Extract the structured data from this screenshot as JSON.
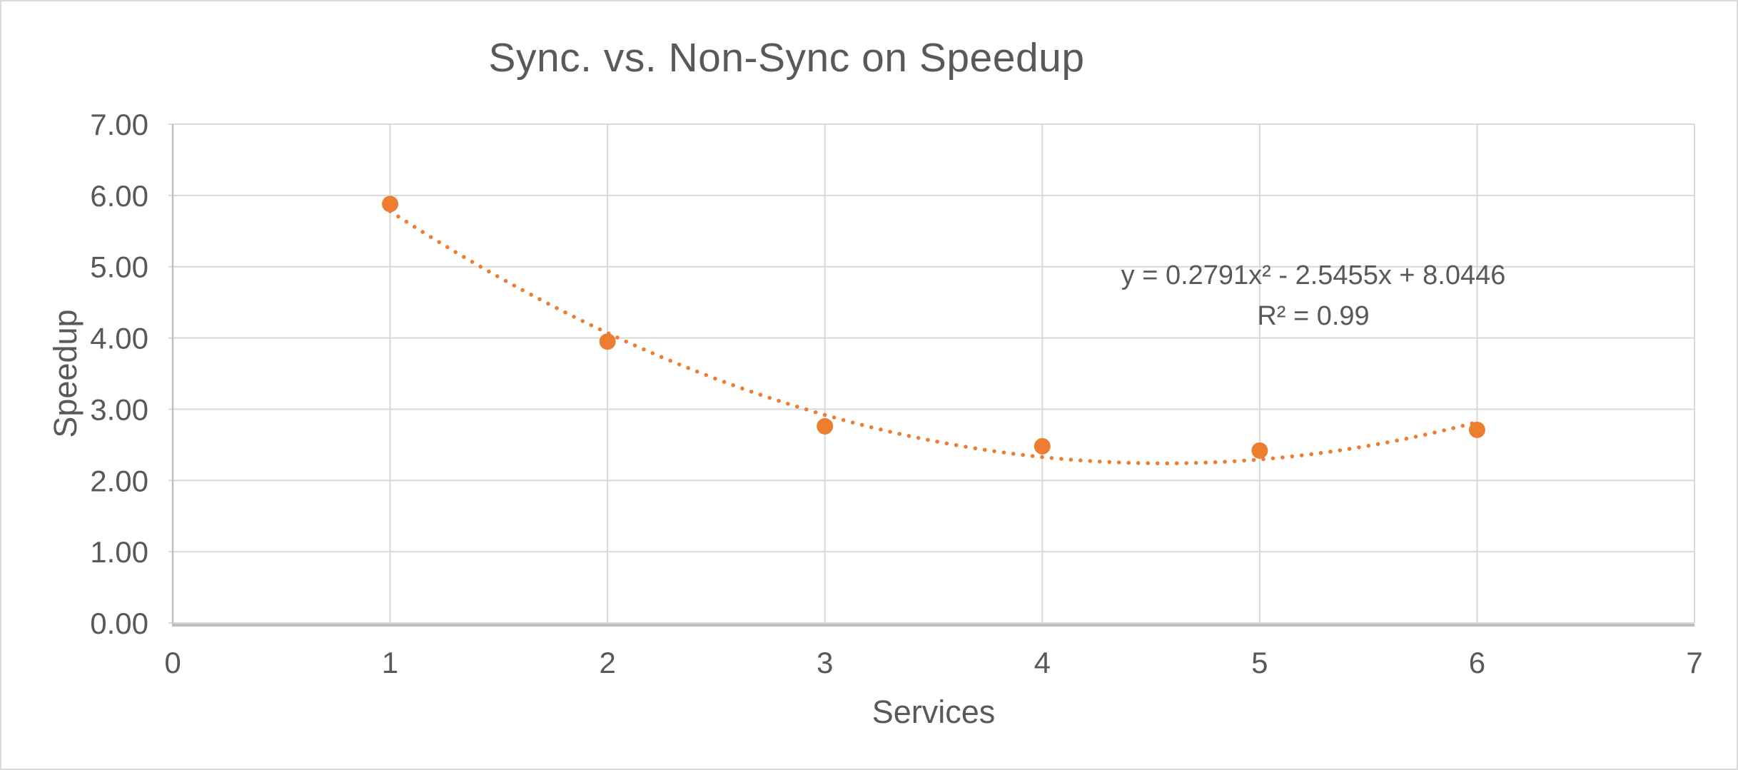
{
  "chart": {
    "title": "Sync. vs. Non-Sync on Speedup",
    "x_axis_title": "Services",
    "y_axis_title": "Speedup",
    "equation_line1": "y = 0.2791x² - 2.5455x + 8.0446",
    "equation_line2": "R² = 0.99"
  },
  "chart_data": {
    "type": "scatter",
    "title": "Sync. vs. Non-Sync on Speedup",
    "xlabel": "Services",
    "ylabel": "Speedup",
    "x": [
      1,
      2,
      3,
      4,
      5,
      6
    ],
    "y": [
      5.88,
      3.95,
      2.76,
      2.48,
      2.42,
      2.71
    ],
    "xlim": [
      0,
      7
    ],
    "ylim": [
      0,
      7
    ],
    "x_ticks": [
      "0",
      "1",
      "2",
      "3",
      "4",
      "5",
      "6",
      "7"
    ],
    "y_ticks": [
      "0.00",
      "1.00",
      "2.00",
      "3.00",
      "4.00",
      "5.00",
      "6.00",
      "7.00"
    ],
    "grid": true,
    "legend": false,
    "trendline": {
      "kind": "polynomial",
      "order": 2,
      "a": 0.2791,
      "b": -2.5455,
      "c": 8.0446,
      "x_range": [
        1,
        6
      ],
      "style": "dotted",
      "equation": "y = 0.2791x² - 2.5455x + 8.0446",
      "r_squared": "R² = 0.99"
    },
    "colors": {
      "marker": "#ED7D31",
      "trendline": "#ED7D31",
      "text": "#595959",
      "gridline": "#D9D9D9",
      "axis_line": "#BFBFBF",
      "background": "#FFFFFF"
    }
  }
}
